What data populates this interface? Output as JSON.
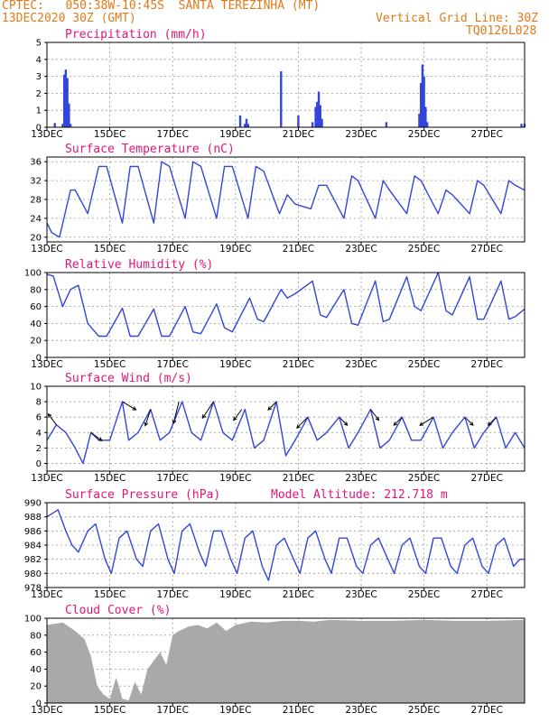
{
  "header": {
    "line1": "CPTEC:   050:38W-10:45S  SANTA TEREZINHA (MT)",
    "line2_left": "13DEC2020 30Z (GMT)",
    "line2_right": "Vertical Grid Line: 30Z",
    "line3_right": "TQ0126L028"
  },
  "colors": {
    "line": "#3346d9",
    "cloud": "#a9a9a9",
    "title": "#e0157a",
    "header": "#e07a1a",
    "arrow": "#000000"
  },
  "x_labels": [
    "13DEC",
    "15DEC",
    "17DEC",
    "19DEC",
    "21DEC",
    "23DEC",
    "25DEC",
    "27DEC"
  ],
  "chart_data": [
    {
      "type": "bar",
      "title": "Precipitation (mm/h)",
      "ylim": [
        0,
        5
      ],
      "yticks": [
        "0",
        "1",
        "2",
        "3",
        "4",
        "5"
      ],
      "grid": true,
      "x_days": [
        0.25,
        0.5,
        0.55,
        0.6,
        0.65,
        0.7,
        0.75,
        6.15,
        6.3,
        6.35,
        6.4,
        7.45,
        8.0,
        8.45,
        8.55,
        8.6,
        8.65,
        8.7,
        8.75,
        10.8,
        11.85,
        11.9,
        11.95,
        12.0,
        12.05,
        12.1,
        15.1,
        15.2
      ],
      "values": [
        0.25,
        0.2,
        3.1,
        3.4,
        2.9,
        1.4,
        0.2,
        0.7,
        0.2,
        0.5,
        0.2,
        3.3,
        0.7,
        0.3,
        1.2,
        1.5,
        2.1,
        1.3,
        0.5,
        0.3,
        0.8,
        2.6,
        3.7,
        3.0,
        1.2,
        0.3,
        0.2,
        0.2
      ]
    },
    {
      "type": "line",
      "title": "Surface Temperature (nC)",
      "ylim": [
        19,
        37
      ],
      "yticks": [
        "20",
        "24",
        "28",
        "32",
        "36"
      ],
      "grid": true,
      "x_days": [
        0,
        0.15,
        0.4,
        0.75,
        0.9,
        1.3,
        1.65,
        1.9,
        2.4,
        2.65,
        2.9,
        3.4,
        3.65,
        3.9,
        4.4,
        4.65,
        4.9,
        5.4,
        5.65,
        5.9,
        6.4,
        6.65,
        6.9,
        7.4,
        7.65,
        7.9,
        8.4,
        8.65,
        8.9,
        9.45,
        9.7,
        9.9,
        10.45,
        10.7,
        10.9,
        11.45,
        11.7,
        11.9,
        12.45,
        12.7,
        12.9,
        13.45,
        13.7,
        13.9,
        14.45,
        14.7,
        14.9,
        15.2
      ],
      "values": [
        23,
        21,
        20,
        30,
        30,
        25,
        35,
        35,
        23,
        35,
        35,
        23,
        36,
        35,
        24,
        36,
        35,
        24,
        35,
        35,
        24,
        35,
        34,
        25,
        29,
        27,
        26,
        31,
        31,
        24,
        33,
        32,
        24,
        32,
        30,
        25,
        33,
        32,
        25,
        30,
        29,
        25,
        32,
        31,
        25,
        32,
        31,
        30
      ]
    },
    {
      "type": "line",
      "title": "Relative Humidity (%)",
      "ylim": [
        0,
        100
      ],
      "yticks": [
        "0",
        "20",
        "40",
        "60",
        "80",
        "100"
      ],
      "grid": true,
      "x_days": [
        0,
        0.2,
        0.5,
        0.75,
        1.0,
        1.3,
        1.65,
        1.9,
        2.4,
        2.65,
        2.9,
        3.4,
        3.65,
        3.9,
        4.4,
        4.65,
        4.9,
        5.4,
        5.65,
        5.9,
        6.45,
        6.7,
        6.9,
        7.45,
        7.65,
        7.9,
        8.45,
        8.7,
        8.9,
        9.45,
        9.7,
        9.9,
        10.45,
        10.7,
        10.9,
        11.45,
        11.7,
        11.9,
        12.45,
        12.7,
        12.9,
        13.45,
        13.7,
        13.9,
        14.45,
        14.7,
        14.9,
        15.2
      ],
      "values": [
        98,
        96,
        60,
        80,
        85,
        40,
        25,
        25,
        58,
        25,
        25,
        57,
        25,
        25,
        60,
        30,
        28,
        63,
        35,
        30,
        70,
        45,
        42,
        80,
        70,
        75,
        90,
        50,
        47,
        80,
        40,
        38,
        90,
        42,
        45,
        95,
        60,
        55,
        100,
        55,
        50,
        95,
        45,
        45,
        90,
        45,
        48,
        57
      ]
    },
    {
      "type": "line",
      "title": "Surface Wind (m/s)",
      "ylim": [
        -1,
        10
      ],
      "yticks": [
        "0",
        "2",
        "4",
        "6",
        "8",
        "10"
      ],
      "grid": true,
      "x_days": [
        0,
        0.3,
        0.6,
        0.9,
        1.15,
        1.4,
        1.65,
        2.0,
        2.4,
        2.6,
        2.9,
        3.3,
        3.6,
        3.9,
        4.3,
        4.6,
        4.9,
        5.3,
        5.6,
        5.9,
        6.3,
        6.6,
        6.9,
        7.3,
        7.6,
        7.9,
        8.3,
        8.6,
        8.9,
        9.3,
        9.6,
        9.9,
        10.3,
        10.6,
        10.9,
        11.3,
        11.6,
        11.9,
        12.3,
        12.6,
        12.9,
        13.3,
        13.6,
        13.9,
        14.3,
        14.6,
        14.9,
        15.2
      ],
      "values": [
        3,
        5,
        4,
        2,
        0,
        4,
        3,
        3,
        8,
        3,
        4,
        7,
        3,
        4,
        8,
        4,
        3,
        8,
        4,
        3,
        7,
        2,
        3,
        8,
        1,
        3,
        6,
        3,
        4,
        6,
        2,
        4,
        7,
        2,
        3,
        6,
        3,
        3,
        6,
        2,
        4,
        6,
        2,
        4,
        6,
        2,
        4,
        2
      ],
      "arrow_days": [
        0.3,
        1.4,
        2.4,
        3.3,
        4.2,
        5.3,
        6.2,
        7.3,
        8.3,
        9.3,
        10.3,
        11.3,
        12.3,
        13.3,
        14.3
      ],
      "arrow_u": [
        -1.5,
        2,
        2.5,
        -1,
        -1,
        -2,
        -1.5,
        -1.5,
        -2,
        1.5,
        1.5,
        -1.5,
        -2.5,
        1.5,
        -1.5
      ],
      "arrow_v": [
        2,
        -1.5,
        -1.5,
        -3,
        -4,
        -3,
        -2,
        -1.5,
        -2,
        -1.5,
        -2,
        -1.5,
        -1.5,
        -1.5,
        -1.5
      ]
    },
    {
      "type": "line",
      "title": "Surface Pressure (hPa)",
      "subtitle": "Model Altitude: 212.718  m",
      "ylim": [
        978,
        990
      ],
      "yticks": [
        "978",
        "980",
        "982",
        "984",
        "986",
        "988",
        "990"
      ],
      "grid": true,
      "x_days": [
        0,
        0.35,
        0.6,
        0.8,
        1.0,
        1.3,
        1.55,
        1.85,
        2.05,
        2.3,
        2.55,
        2.85,
        3.05,
        3.3,
        3.55,
        3.85,
        4.05,
        4.3,
        4.55,
        4.85,
        5.05,
        5.3,
        5.55,
        5.85,
        6.05,
        6.3,
        6.55,
        6.85,
        7.05,
        7.3,
        7.55,
        7.85,
        8.05,
        8.3,
        8.55,
        8.85,
        9.05,
        9.3,
        9.55,
        9.85,
        10.05,
        10.3,
        10.55,
        10.85,
        11.05,
        11.3,
        11.55,
        11.85,
        12.05,
        12.3,
        12.55,
        12.85,
        13.05,
        13.3,
        13.55,
        13.85,
        14.05,
        14.3,
        14.55,
        14.85,
        15.05,
        15.2
      ],
      "values": [
        988,
        989,
        986,
        984,
        983,
        986,
        987,
        982,
        980,
        985,
        986,
        982,
        981,
        986,
        987,
        982,
        980,
        986,
        987,
        983,
        981,
        986,
        986,
        982,
        980,
        985,
        986,
        981,
        979,
        984,
        985,
        982,
        980,
        985,
        986,
        982,
        980,
        985,
        985,
        981,
        980,
        984,
        985,
        982,
        980,
        984,
        985,
        981,
        980,
        985,
        985,
        981,
        980,
        984,
        985,
        981,
        980,
        984,
        985,
        981,
        982,
        982
      ]
    },
    {
      "type": "area",
      "title": "Cloud Cover (%)",
      "ylim": [
        0,
        100
      ],
      "yticks": [
        "0",
        "20",
        "40",
        "60",
        "80",
        "100"
      ],
      "grid": true,
      "x_days": [
        0,
        0.5,
        0.9,
        1.2,
        1.4,
        1.6,
        1.8,
        2.0,
        2.2,
        2.3,
        2.4,
        2.6,
        2.8,
        3.0,
        3.2,
        3.4,
        3.6,
        3.8,
        4.0,
        4.2,
        4.5,
        4.8,
        5.1,
        5.4,
        5.7,
        6.0,
        6.5,
        7.0,
        7.5,
        8.0,
        8.5,
        9.0,
        10.0,
        11.0,
        12.0,
        13.0,
        14.0,
        15.2
      ],
      "values": [
        92,
        95,
        85,
        75,
        55,
        20,
        10,
        5,
        30,
        18,
        5,
        3,
        25,
        10,
        40,
        50,
        60,
        45,
        80,
        85,
        90,
        92,
        88,
        95,
        85,
        92,
        96,
        95,
        97,
        97,
        96,
        98,
        97,
        97,
        98,
        97,
        97,
        98
      ]
    }
  ]
}
